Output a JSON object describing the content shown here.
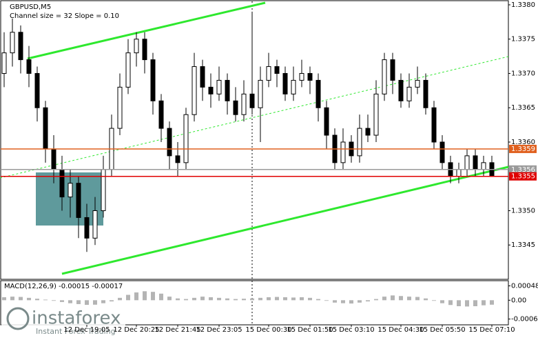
{
  "chart_data": [
    {
      "type": "candlestick",
      "title": "GBPUSD,M5",
      "subtitle": "Channel size = 32 Slope = 0.10",
      "categories": [
        null,
        null,
        null,
        null,
        null,
        null,
        null,
        null,
        null,
        null,
        "12 Dec 19:05",
        null,
        null,
        null,
        null,
        null,
        "12 Dec 20:25",
        null,
        null,
        null,
        null,
        "12 Dec 21:45",
        null,
        null,
        null,
        null,
        "12 Dec 23:05",
        null,
        null,
        null,
        null,
        null,
        "15 Dec 00:30",
        null,
        null,
        null,
        null,
        "15 Dec 01:50",
        null,
        null,
        null,
        null,
        "15 Dec 03:10",
        null,
        null,
        null,
        null,
        null,
        "15 Dec 04:30",
        null,
        null,
        null,
        null,
        "15 Dec 05:50",
        null,
        null,
        null,
        null,
        null,
        "15 Dec 07:10"
      ],
      "candles": [
        [
          1.337,
          1.3376,
          1.3368,
          1.3373
        ],
        [
          1.3373,
          1.3378,
          1.3371,
          1.3376
        ],
        [
          1.3376,
          1.3377,
          1.337,
          1.3372
        ],
        [
          1.3372,
          1.3374,
          1.3368,
          1.337
        ],
        [
          1.337,
          1.3371,
          1.3363,
          1.3365
        ],
        [
          1.3365,
          1.3366,
          1.3357,
          1.3359
        ],
        [
          1.3359,
          1.3361,
          1.3354,
          1.3356
        ],
        [
          1.3356,
          1.3358,
          1.335,
          1.3352
        ],
        [
          1.3352,
          1.3356,
          1.3349,
          1.3354
        ],
        [
          1.3354,
          1.3355,
          1.3346,
          1.3349
        ],
        [
          1.3349,
          1.3351,
          1.3344,
          1.3346
        ],
        [
          1.3346,
          1.3352,
          1.3345,
          1.335
        ],
        [
          1.335,
          1.3358,
          1.3349,
          1.3356
        ],
        [
          1.3356,
          1.3364,
          1.3355,
          1.3362
        ],
        [
          1.3362,
          1.337,
          1.3361,
          1.3368
        ],
        [
          1.3368,
          1.3375,
          1.3367,
          1.3373
        ],
        [
          1.3373,
          1.3376,
          1.3371,
          1.3375
        ],
        [
          1.3375,
          1.3376,
          1.337,
          1.3372
        ],
        [
          1.3372,
          1.3373,
          1.3364,
          1.3366
        ],
        [
          1.3366,
          1.3367,
          1.336,
          1.3362
        ],
        [
          1.3362,
          1.3363,
          1.3356,
          1.3358
        ],
        [
          1.3358,
          1.336,
          1.3355,
          1.3357
        ],
        [
          1.3357,
          1.3365,
          1.3356,
          1.3364
        ],
        [
          1.3364,
          1.3373,
          1.3363,
          1.3371
        ],
        [
          1.3371,
          1.3372,
          1.3366,
          1.3368
        ],
        [
          1.3368,
          1.337,
          1.3365,
          1.3367
        ],
        [
          1.3367,
          1.3371,
          1.3366,
          1.3369
        ],
        [
          1.3369,
          1.337,
          1.3364,
          1.3366
        ],
        [
          1.3366,
          1.3368,
          1.3363,
          1.3364
        ],
        [
          1.3364,
          1.3369,
          1.3363,
          1.3367
        ],
        [
          1.3367,
          1.3379,
          1.3364,
          1.3365
        ],
        [
          1.3365,
          1.3371,
          1.336,
          1.3369
        ],
        [
          1.3369,
          1.3373,
          1.3368,
          1.3371
        ],
        [
          1.3371,
          1.3372,
          1.3368,
          1.337
        ],
        [
          1.337,
          1.3371,
          1.3366,
          1.3367
        ],
        [
          1.3367,
          1.3371,
          1.3366,
          1.3369
        ],
        [
          1.3369,
          1.3372,
          1.3368,
          1.337
        ],
        [
          1.337,
          1.3371,
          1.3367,
          1.3369
        ],
        [
          1.3369,
          1.337,
          1.3363,
          1.3365
        ],
        [
          1.3365,
          1.3366,
          1.3359,
          1.3361
        ],
        [
          1.3361,
          1.3362,
          1.3356,
          1.3357
        ],
        [
          1.3357,
          1.3362,
          1.3356,
          1.336
        ],
        [
          1.336,
          1.3361,
          1.3357,
          1.3358
        ],
        [
          1.3358,
          1.3364,
          1.3357,
          1.3362
        ],
        [
          1.3362,
          1.3364,
          1.336,
          1.3361
        ],
        [
          1.3361,
          1.3369,
          1.336,
          1.3367
        ],
        [
          1.3367,
          1.3373,
          1.3366,
          1.3372
        ],
        [
          1.3372,
          1.3373,
          1.3367,
          1.3369
        ],
        [
          1.3369,
          1.337,
          1.3365,
          1.3366
        ],
        [
          1.3366,
          1.337,
          1.3365,
          1.3368
        ],
        [
          1.3368,
          1.3371,
          1.3367,
          1.3369
        ],
        [
          1.3369,
          1.337,
          1.3364,
          1.3365
        ],
        [
          1.3365,
          1.3366,
          1.3359,
          1.336
        ],
        [
          1.336,
          1.3361,
          1.3356,
          1.3357
        ],
        [
          1.3357,
          1.3358,
          1.3354,
          1.3355
        ],
        [
          1.3355,
          1.3357,
          1.3354,
          1.3356
        ],
        [
          1.3356,
          1.3359,
          1.3355,
          1.3358
        ],
        [
          1.3358,
          1.3359,
          1.3355,
          1.3356
        ],
        [
          1.3356,
          1.3358,
          1.3355,
          1.3357
        ],
        [
          1.3357,
          1.3358,
          1.3355,
          1.3355
        ]
      ],
      "up_color": "#ffffff",
      "down_color": "#000000",
      "ylim": [
        1.334,
        1.33805
      ],
      "yticks": [
        {
          "value": 1.338,
          "label": "1.3380"
        },
        1.3375,
        {
          "value": 1.337,
          "label": "1.3370"
        },
        1.3365,
        {
          "value": 1.336,
          "label": "1.3360"
        },
        {
          "value": 1.335,
          "label": "1.3350"
        },
        1.3345
      ],
      "levels": [
        {
          "value": 1.3359,
          "color": "#e0601e"
        },
        {
          "value": 1.3356,
          "color": "#9a9a9a"
        },
        {
          "value": 1.3355,
          "color": "#e00000"
        }
      ]
    },
    {
      "type": "bar",
      "title": "MACD(12,26,9) -0.00015 -0.00017",
      "values": [
        0.0001,
        0.00012,
        0.00011,
        8e-05,
        5e-05,
        2e-05,
        -2e-05,
        -6e-05,
        -0.0001,
        -0.00013,
        -0.00016,
        -0.00015,
        -0.0001,
        -4e-05,
        8e-05,
        0.00018,
        0.00026,
        0.0003,
        0.00028,
        0.00022,
        0.00012,
        6e-05,
        4e-05,
        8e-05,
        0.00012,
        0.0001,
        8e-05,
        6e-05,
        4e-05,
        5e-05,
        6e-05,
        8e-05,
        0.0001,
        0.00011,
        0.0001,
        9e-05,
        0.0001,
        8e-05,
        4e-05,
        -2e-05,
        -8e-05,
        -0.0001,
        -0.00011,
        -8e-05,
        -4e-05,
        4e-05,
        0.00012,
        0.00016,
        0.00014,
        0.00012,
        0.00011,
        6e-05,
        -2e-05,
        -0.0001,
        -0.00016,
        -0.0002,
        -0.00021,
        -0.0002,
        -0.00017,
        -0.00015
      ],
      "color": "#b4b4b4",
      "ylim": [
        -0.0008,
        0.00063
      ],
      "yticks": [
        0.00048,
        {
          "value": 0,
          "label": "0.00"
        },
        -0.00063
      ]
    }
  ],
  "watermark": {
    "brand": "instaforex",
    "tagline": "Instant Forex Trading"
  }
}
